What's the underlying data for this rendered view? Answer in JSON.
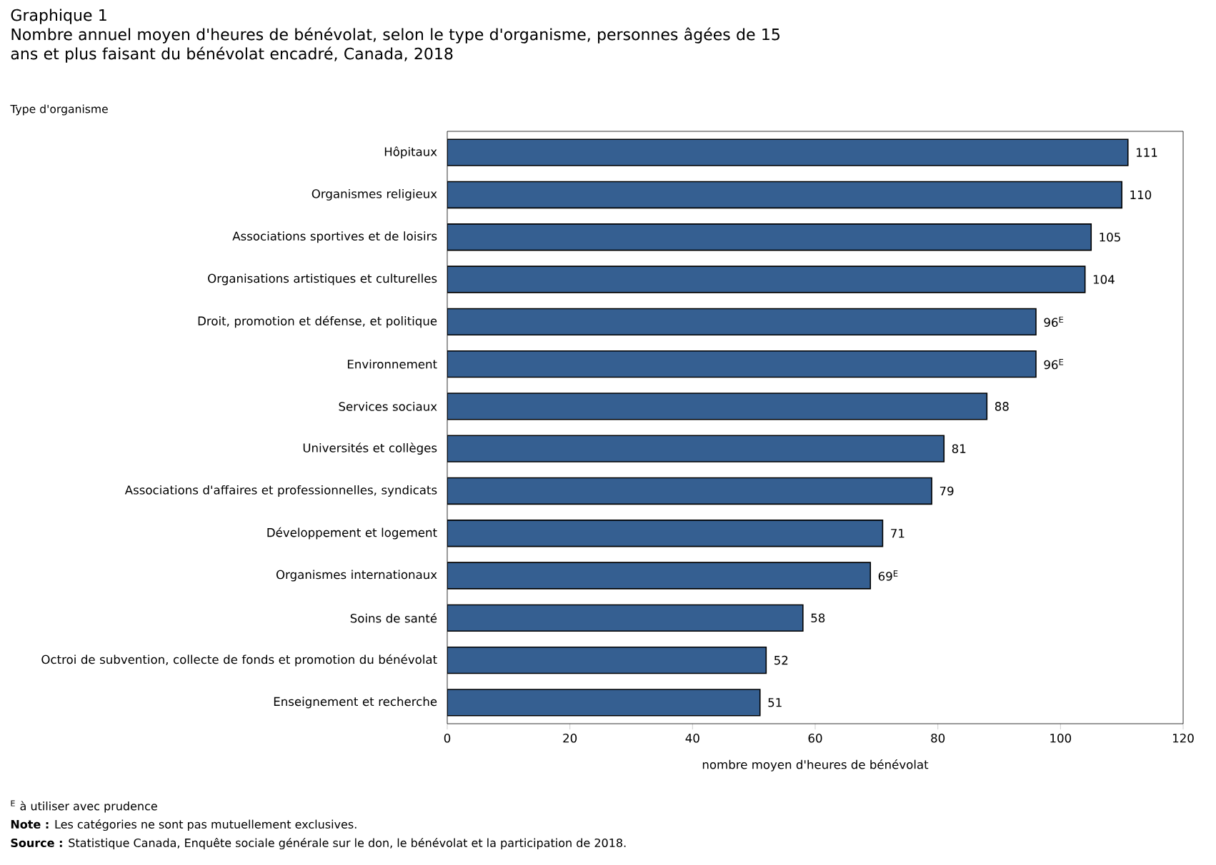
{
  "chart_data": {
    "type": "bar",
    "orientation": "horizontal",
    "title": "Graphique 1",
    "subtitle": "Nombre annuel moyen d'heures de bénévolat, selon le type d'organisme, personnes âgées de 15 ans et plus faisant du bénévolat encadré, Canada, 2018",
    "ylabel": "Type d'organisme",
    "xlabel": "nombre moyen d'heures de bénévolat",
    "categories": [
      "Hôpitaux",
      "Organismes religieux",
      "Associations sportives et de loisirs",
      "Organisations artistiques et culturelles",
      "Droit, promotion et défense, et politique",
      "Environnement",
      "Services sociaux",
      "Universités et collèges",
      "Associations d'affaires et professionnelles, syndicats",
      "Développement et logement",
      "Organismes internationaux",
      "Soins de santé",
      "Octroi de subvention, collecte de fonds et promotion du bénévolat",
      "Enseignement et recherche"
    ],
    "values": [
      111,
      110,
      105,
      104,
      96,
      96,
      88,
      81,
      79,
      71,
      69,
      58,
      52,
      51
    ],
    "value_labels": [
      "111",
      "110",
      "105",
      "104",
      "96$^{E}$",
      "96$^{E}$",
      "88",
      "81",
      "79",
      "71",
      "69$^{E}$",
      "58",
      "52",
      "51"
    ],
    "color": "#355f91",
    "xlim": [
      0,
      120
    ],
    "xticks": [
      0,
      20,
      40,
      60,
      80,
      100,
      120
    ],
    "annotations": [
      "$^{E}$ à utiliser avec prudence",
      "**Note :** Les catégories ne sont pas mutuellement exclusives.",
      "**Source :** Statistique Canada, Enquête sociale générale sur le don, le bénévolat et la participation de 2018."
    ]
  }
}
